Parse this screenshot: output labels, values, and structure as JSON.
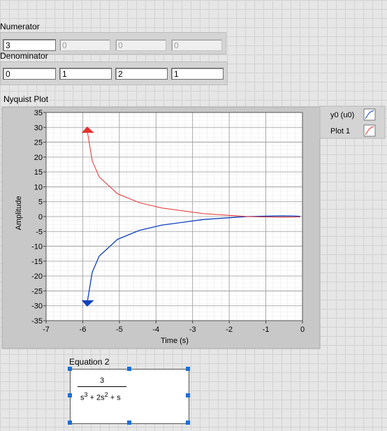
{
  "numerator": {
    "label": "Numerator",
    "values": [
      3,
      0,
      0,
      0
    ]
  },
  "denominator": {
    "label": "Denominator",
    "values": [
      0,
      1,
      2,
      1
    ]
  },
  "equation": {
    "label": "Equation 2",
    "numerator": "3",
    "denominator": [
      "s",
      "3",
      " + 2s",
      "2",
      " + s"
    ]
  },
  "chart_data": {
    "type": "line",
    "title": "Nyquist Plot",
    "x_label": "Time (s)",
    "y_label": "Amplitude",
    "x": [
      -5.88,
      -5.74,
      -5.55,
      -5.05,
      -4.46,
      -3.84,
      -2.7,
      -1.5,
      -0.57,
      -0.24,
      -0.06
    ],
    "series": [
      {
        "name": "y0 (u0)",
        "color": "#1040c0",
        "values": [
          -29.11,
          -18.7,
          -13.31,
          -7.66,
          -4.68,
          -2.88,
          -0.98,
          0,
          0.24,
          0.18,
          0.08
        ]
      },
      {
        "name": "Plot 1",
        "color": "#e83030",
        "values": [
          29.11,
          18.7,
          13.31,
          7.66,
          4.68,
          2.88,
          0.98,
          0,
          -0.24,
          -0.18,
          -0.08
        ]
      }
    ],
    "xlim": [
      -7,
      0
    ],
    "xticks": [
      -7,
      -6,
      -5,
      -4,
      -3,
      -2,
      -1,
      0
    ],
    "ylim": [
      -35,
      35
    ],
    "yticks": [
      -35,
      -30,
      -25,
      -20,
      -15,
      -10,
      -5,
      0,
      5,
      10,
      15,
      20,
      25,
      30,
      35
    ],
    "grid": true
  }
}
